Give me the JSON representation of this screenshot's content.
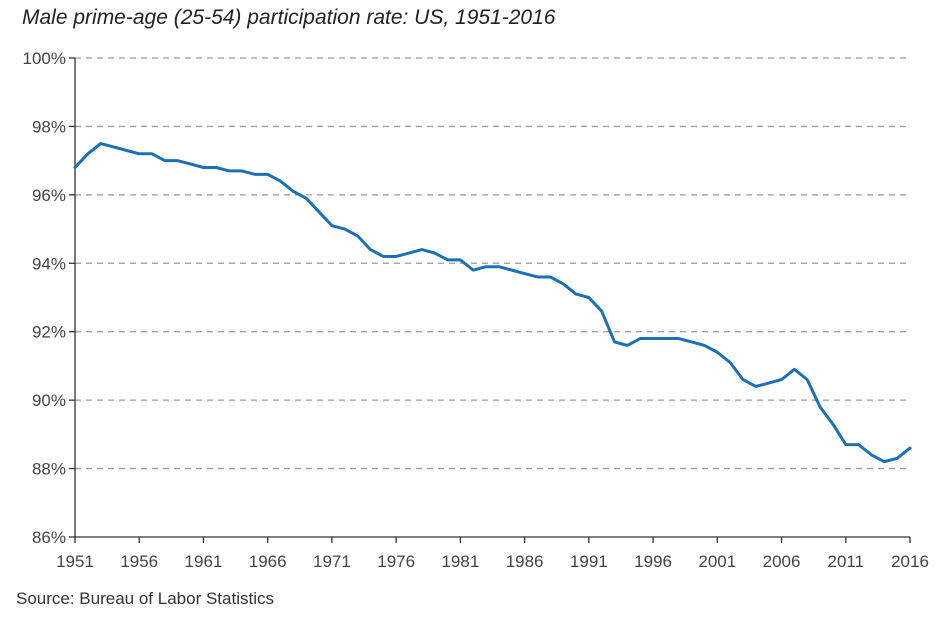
{
  "chart_data": {
    "type": "line",
    "title": "Male prime-age (25-54) participation rate: US, 1951-2016",
    "source": "Source: Bureau of Labor Statistics",
    "xlim": [
      1951,
      2016
    ],
    "ylim": [
      86,
      100
    ],
    "x_ticks": [
      1951,
      1956,
      1961,
      1966,
      1971,
      1976,
      1981,
      1986,
      1991,
      1996,
      2001,
      2006,
      2011,
      2016
    ],
    "y_ticks": [
      86,
      88,
      90,
      92,
      94,
      96,
      98,
      100
    ],
    "y_tick_labels": [
      "86%",
      "88%",
      "90%",
      "92%",
      "94%",
      "96%",
      "98%",
      "100%"
    ],
    "grid": "horizontal dashed",
    "colors": {
      "line": "#1a70b8",
      "grid": "#9a9a9a",
      "axis": "#333333"
    },
    "series": [
      {
        "x": [
          1951,
          1952,
          1953,
          1954,
          1955,
          1956,
          1957,
          1958,
          1959,
          1960,
          1961,
          1962,
          1963,
          1964,
          1965,
          1966,
          1967,
          1968,
          1969,
          1970,
          1971,
          1972,
          1973,
          1974,
          1975,
          1976,
          1977,
          1978,
          1979,
          1980,
          1981,
          1982,
          1983,
          1984,
          1985,
          1986,
          1987,
          1988,
          1989,
          1990,
          1991,
          1992,
          1993,
          1994,
          1995,
          1996,
          1997,
          1998,
          1999,
          2000,
          2001,
          2002,
          2003,
          2004,
          2005,
          2006,
          2007,
          2008,
          2009,
          2010,
          2011,
          2012,
          2013,
          2014,
          2015,
          2016
        ],
        "y": [
          96.8,
          97.2,
          97.5,
          97.4,
          97.3,
          97.2,
          97.2,
          97.0,
          97.0,
          96.9,
          96.8,
          96.8,
          96.7,
          96.7,
          96.6,
          96.6,
          96.4,
          96.1,
          95.9,
          95.5,
          95.1,
          95.0,
          94.8,
          94.4,
          94.2,
          94.2,
          94.3,
          94.4,
          94.3,
          94.1,
          94.1,
          93.8,
          93.9,
          93.9,
          93.8,
          93.7,
          93.6,
          93.6,
          93.4,
          93.1,
          93.0,
          92.6,
          91.7,
          91.6,
          91.8,
          91.8,
          91.8,
          91.8,
          91.7,
          91.6,
          91.4,
          91.1,
          90.6,
          90.4,
          90.5,
          90.6,
          90.9,
          90.6,
          89.8,
          89.3,
          88.7,
          88.7,
          88.4,
          88.2,
          88.3,
          88.6
        ]
      }
    ]
  }
}
